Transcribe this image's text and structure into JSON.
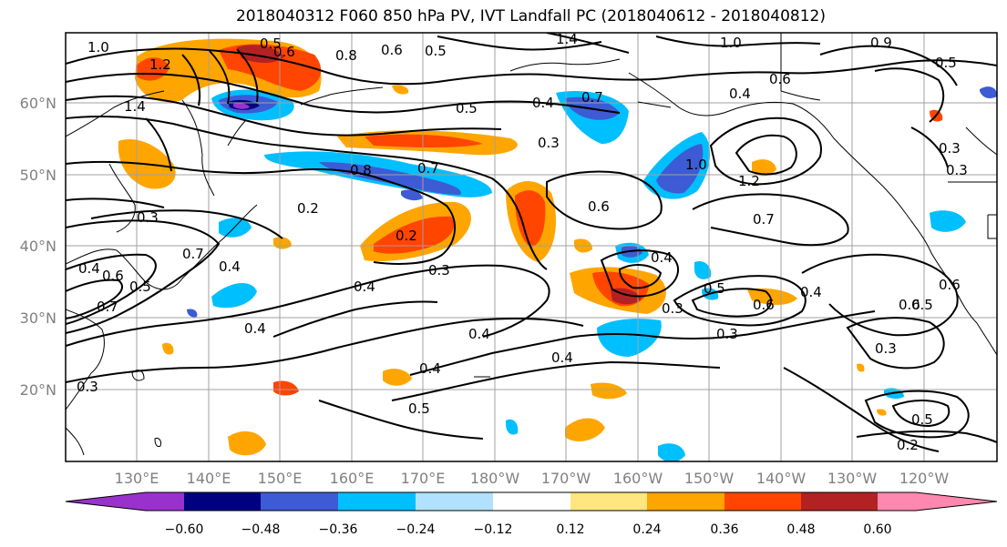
{
  "title": "2018040312 F060 850 hPa PV, IVT Landfall PC (2018040612 - 2018040812)",
  "lat_labels": [
    "60°N",
    "50°N",
    "40°N",
    "30°N",
    "20°N"
  ],
  "lon_labels": [
    "130°E",
    "140°E",
    "150°E",
    "160°E",
    "170°E",
    "180°W",
    "170°W",
    "160°W",
    "150°W",
    "140°W",
    "130°W",
    "120°W"
  ],
  "colorbar": {
    "colors": [
      "#9932cc",
      "#000080",
      "#3d5bd4",
      "#00bfff",
      "#b0e2ff",
      "#ffffff",
      "#ffe680",
      "#ffa500",
      "#ff4500",
      "#b22222",
      "#ff88b0"
    ],
    "ticks": [
      "−0.60",
      "−0.48",
      "−0.36",
      "−0.24",
      "−0.12",
      "0.12",
      "0.24",
      "0.36",
      "0.48",
      "0.60"
    ]
  },
  "contour_labels": [
    "1.0",
    "0.5",
    "0.6",
    "0.8",
    "0.6",
    "0.5",
    "1.4",
    "1.0",
    "0.9",
    "0.5",
    "1.2",
    "1.4",
    "0.7",
    "0.5",
    "0.4",
    "0.3",
    "0.7",
    "0.4",
    "0.6",
    "0.8",
    "0.3",
    "0.7",
    "0.6",
    "1.0",
    "1.2",
    "0.3",
    "0.2",
    "0.2",
    "0.6",
    "0.7",
    "0.3",
    "0.4",
    "0.4",
    "0.3",
    "0.3",
    "0.4",
    "0.4",
    "0.5",
    "0.6",
    "0.4",
    "0.6",
    "0.3",
    "0.4",
    "0.5",
    "0.4",
    "0.4",
    "0.5",
    "0.3",
    "0.5",
    "0.2",
    "0.7",
    "0.4",
    "0.5",
    "0.6",
    "0.3"
  ]
}
